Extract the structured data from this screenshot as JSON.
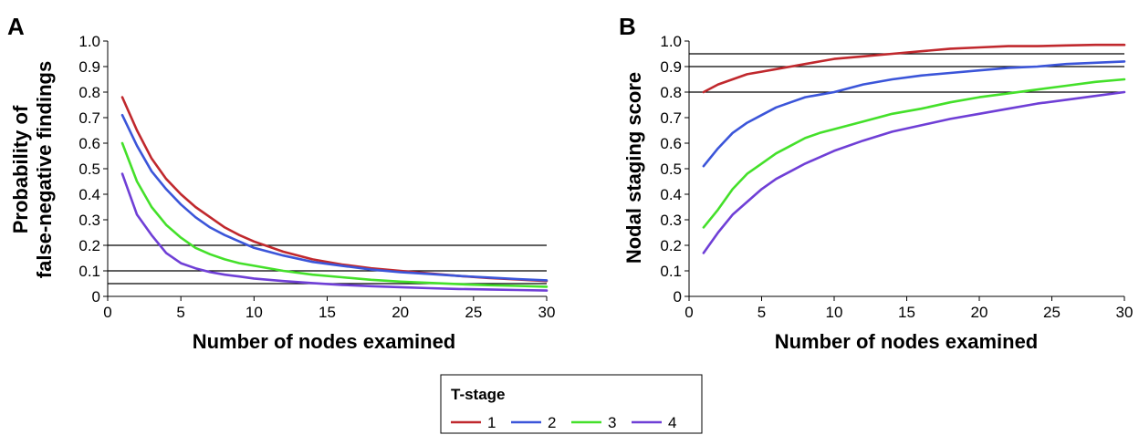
{
  "colors": {
    "t1": "#c0282d",
    "t2": "#3b55d9",
    "t3": "#44e02a",
    "t4": "#6f3fd6",
    "ref_line": "#000000"
  },
  "legend": {
    "title": "T-stage",
    "entries": [
      {
        "label": "1",
        "color": "#c0282d"
      },
      {
        "label": "2",
        "color": "#3b55d9"
      },
      {
        "label": "3",
        "color": "#44e02a"
      },
      {
        "label": "4",
        "color": "#6f3fd6"
      }
    ]
  },
  "chart_data": [
    {
      "type": "line",
      "panel": "A",
      "xlabel": "Number of nodes examined",
      "ylabel": [
        "Probability of",
        "false-negative findings"
      ],
      "xlim": [
        0,
        30
      ],
      "ylim": [
        0,
        1.0
      ],
      "x_ticks": [
        "0",
        "5",
        "10",
        "15",
        "20",
        "25",
        "30"
      ],
      "y_ticks": [
        "0",
        "0.1",
        "0.2",
        "0.3",
        "0.4",
        "0.5",
        "0.6",
        "0.7",
        "0.8",
        "0.9",
        "1.0"
      ],
      "reference_lines": [
        0.2,
        0.1,
        0.05
      ],
      "x": [
        1,
        2,
        3,
        4,
        5,
        6,
        7,
        8,
        9,
        10,
        12,
        14,
        16,
        18,
        20,
        22,
        24,
        26,
        28,
        30
      ],
      "series": [
        {
          "color": "#c0282d",
          "values": [
            0.78,
            0.65,
            0.54,
            0.46,
            0.4,
            0.35,
            0.31,
            0.27,
            0.24,
            0.215,
            0.175,
            0.145,
            0.125,
            0.11,
            0.1,
            0.09,
            0.08,
            0.072,
            0.066,
            0.06
          ]
        },
        {
          "color": "#3b55d9",
          "values": [
            0.71,
            0.59,
            0.49,
            0.42,
            0.36,
            0.31,
            0.27,
            0.24,
            0.215,
            0.19,
            0.16,
            0.135,
            0.12,
            0.105,
            0.095,
            0.088,
            0.08,
            0.074,
            0.068,
            0.063
          ]
        },
        {
          "color": "#44e02a",
          "values": [
            0.6,
            0.45,
            0.35,
            0.28,
            0.23,
            0.19,
            0.165,
            0.145,
            0.13,
            0.12,
            0.1,
            0.085,
            0.075,
            0.065,
            0.058,
            0.053,
            0.048,
            0.044,
            0.041,
            0.038
          ]
        },
        {
          "color": "#6f3fd6",
          "values": [
            0.48,
            0.32,
            0.24,
            0.17,
            0.13,
            0.11,
            0.095,
            0.085,
            0.078,
            0.07,
            0.06,
            0.052,
            0.045,
            0.04,
            0.036,
            0.032,
            0.029,
            0.027,
            0.025,
            0.023
          ]
        }
      ]
    },
    {
      "type": "line",
      "panel": "B",
      "xlabel": "Number of nodes examined",
      "ylabel": [
        "Nodal staging score"
      ],
      "xlim": [
        0,
        30
      ],
      "ylim": [
        0,
        1.0
      ],
      "x_ticks": [
        "0",
        "5",
        "10",
        "15",
        "20",
        "25",
        "30"
      ],
      "y_ticks": [
        "0",
        "0.1",
        "0.2",
        "0.3",
        "0.4",
        "0.5",
        "0.6",
        "0.7",
        "0.8",
        "0.9",
        "1.0"
      ],
      "reference_lines": [
        0.8,
        0.9,
        0.95
      ],
      "x": [
        1,
        2,
        3,
        4,
        5,
        6,
        7,
        8,
        9,
        10,
        12,
        14,
        16,
        18,
        20,
        22,
        24,
        26,
        28,
        30
      ],
      "series": [
        {
          "color": "#c0282d",
          "values": [
            0.8,
            0.83,
            0.85,
            0.87,
            0.88,
            0.89,
            0.9,
            0.91,
            0.92,
            0.93,
            0.94,
            0.95,
            0.96,
            0.97,
            0.975,
            0.98,
            0.98,
            0.983,
            0.985,
            0.985
          ]
        },
        {
          "color": "#3b55d9",
          "values": [
            0.51,
            0.58,
            0.64,
            0.68,
            0.71,
            0.74,
            0.76,
            0.78,
            0.79,
            0.8,
            0.83,
            0.85,
            0.865,
            0.875,
            0.885,
            0.895,
            0.9,
            0.91,
            0.915,
            0.92
          ]
        },
        {
          "color": "#44e02a",
          "values": [
            0.27,
            0.34,
            0.42,
            0.48,
            0.52,
            0.56,
            0.59,
            0.62,
            0.64,
            0.655,
            0.685,
            0.715,
            0.735,
            0.76,
            0.78,
            0.795,
            0.81,
            0.825,
            0.84,
            0.85
          ]
        },
        {
          "color": "#6f3fd6",
          "values": [
            0.17,
            0.25,
            0.32,
            0.37,
            0.42,
            0.46,
            0.49,
            0.52,
            0.545,
            0.57,
            0.61,
            0.645,
            0.67,
            0.695,
            0.715,
            0.735,
            0.755,
            0.77,
            0.785,
            0.8
          ]
        }
      ]
    }
  ]
}
